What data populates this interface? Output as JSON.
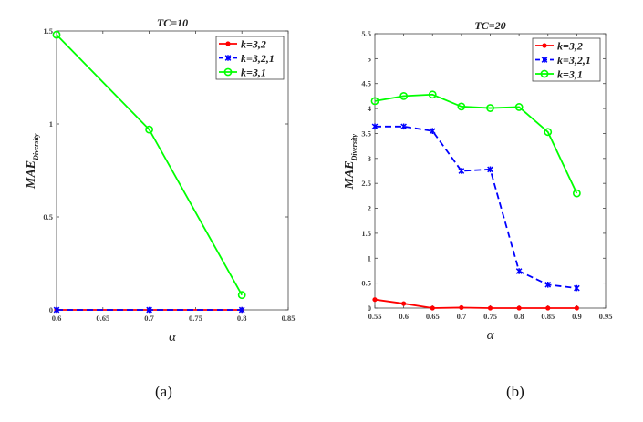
{
  "chart_data": [
    {
      "type": "line",
      "title": "TC=10",
      "xlabel": "α",
      "ylabel": "MAE",
      "ylabel_sub": "Diversity",
      "xlim": [
        0.6,
        0.85
      ],
      "ylim": [
        0,
        1.5
      ],
      "xticks": [
        "0.6",
        "0.65",
        "0.7",
        "0.75",
        "0.8",
        "0.85"
      ],
      "yticks": [
        "0",
        "0.5",
        "1",
        "1.5"
      ],
      "legend_position": "top-right",
      "x": [
        0.6,
        0.7,
        0.8
      ],
      "series": [
        {
          "name": "k=3,2",
          "color": "#ff0000",
          "style": "solid",
          "marker": "dot",
          "values": [
            0,
            0,
            0
          ]
        },
        {
          "name": "k=3,2,1",
          "color": "#0000ff",
          "style": "dashed",
          "marker": "star",
          "values": [
            0,
            0,
            0
          ]
        },
        {
          "name": "k=3,1",
          "color": "#00ff00",
          "style": "solid",
          "marker": "circle",
          "values": [
            1.48,
            0.97,
            0.08
          ]
        }
      ],
      "caption": "(a)"
    },
    {
      "type": "line",
      "title": "TC=20",
      "xlabel": "α",
      "ylabel": "MAE",
      "ylabel_sub": "Diversity",
      "xlim": [
        0.55,
        0.95
      ],
      "ylim": [
        0,
        5.5
      ],
      "xticks": [
        "0.55",
        "0.6",
        "0.65",
        "0.7",
        "0.75",
        "0.8",
        "0.85",
        "0.9",
        "0.95"
      ],
      "yticks": [
        "0",
        "0.5",
        "1",
        "1.5",
        "2",
        "2.5",
        "3",
        "3.5",
        "4",
        "4.5",
        "5",
        "5.5"
      ],
      "legend_position": "top-right",
      "x": [
        0.55,
        0.6,
        0.65,
        0.7,
        0.75,
        0.8,
        0.85,
        0.9
      ],
      "series": [
        {
          "name": "k=3,2",
          "color": "#ff0000",
          "style": "solid",
          "marker": "dot",
          "values": [
            0.17,
            0.09,
            0.0,
            0.01,
            0.0,
            0.0,
            0.0,
            0.0
          ]
        },
        {
          "name": "k=3,2,1",
          "color": "#0000ff",
          "style": "dashed",
          "marker": "star",
          "values": [
            3.64,
            3.64,
            3.55,
            2.75,
            2.78,
            0.74,
            0.47,
            0.4
          ]
        },
        {
          "name": "k=3,1",
          "color": "#00ff00",
          "style": "solid",
          "marker": "circle",
          "values": [
            4.15,
            4.25,
            4.28,
            4.04,
            4.01,
            4.03,
            3.53,
            2.3
          ]
        }
      ],
      "caption": "(b)"
    }
  ]
}
